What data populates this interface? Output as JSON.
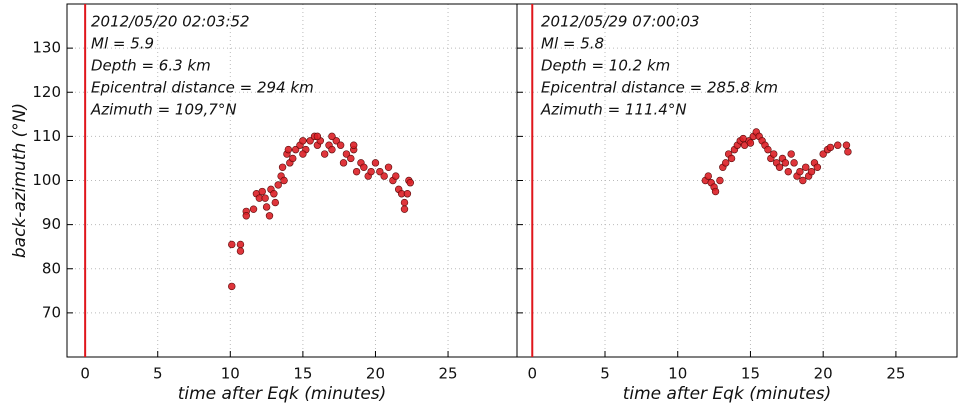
{
  "chart_data": [
    {
      "type": "scatter",
      "color": "#dc1f26",
      "vline": 0,
      "vline_color": "#e0151b",
      "grid": true,
      "annotations": [
        "2012/05/20 02:03:52",
        "Ml = 5.9",
        "Depth = 6.3 km",
        "Epicentral distance = 294 km",
        "Azimuth = 109,7°N"
      ],
      "x_label": "time after Eqk (minutes)",
      "y_label": "back-azimuth (°N)",
      "xlim": [
        -1.25,
        29.75
      ],
      "ylim": [
        60,
        140
      ],
      "xticks": [
        0,
        5,
        10,
        15,
        20,
        25
      ],
      "yticks": [
        70,
        80,
        90,
        100,
        110,
        120,
        130
      ],
      "x": [
        10.1,
        10.1,
        10.7,
        10.7,
        11.1,
        11.1,
        11.6,
        11.8,
        12.0,
        12.2,
        12.4,
        12.5,
        12.7,
        12.8,
        13.0,
        13.1,
        13.3,
        13.5,
        13.6,
        13.7,
        13.9,
        14.1,
        14.3,
        14.5,
        14.8,
        15.0,
        15.2,
        15.5,
        15.8,
        16.0,
        16.2,
        16.5,
        16.8,
        17.0,
        17.3,
        17.6,
        17.8,
        18.0,
        18.3,
        18.5,
        18.7,
        19.0,
        19.2,
        19.5,
        19.7,
        20.0,
        20.3,
        20.6,
        20.9,
        21.2,
        21.4,
        21.6,
        21.8,
        22.0,
        22.0,
        22.2,
        22.3,
        22.4,
        14.0,
        15.0,
        16.0,
        17.0,
        18.5
      ],
      "values": [
        76,
        85.5,
        85.5,
        84,
        93,
        92,
        93.5,
        97,
        96,
        97.5,
        96,
        94,
        92,
        98,
        97,
        95,
        99,
        101,
        103,
        100,
        106,
        104,
        105,
        107,
        108,
        109,
        107,
        109,
        110,
        108,
        109,
        106,
        108,
        107,
        109,
        108,
        104,
        106,
        105,
        107,
        102,
        104,
        103,
        101,
        102,
        104,
        102,
        101,
        103,
        100,
        101,
        98,
        97,
        95,
        93.5,
        97,
        100,
        99.5,
        107,
        106,
        110,
        110,
        108
      ]
    },
    {
      "type": "scatter",
      "color": "#dc1f26",
      "vline": 0,
      "vline_color": "#e0151b",
      "grid": true,
      "annotations": [
        "2012/05/29 07:00:03",
        "Ml = 5.8",
        "Depth = 10.2 km",
        "Epicentral distance = 285.8 km",
        "Azimuth = 111.4°N"
      ],
      "x_label": "time after Eqk (minutes)",
      "xlim": [
        -1.05,
        29.2
      ],
      "ylim": [
        60,
        140
      ],
      "xticks": [
        0,
        5,
        10,
        15,
        20,
        25
      ],
      "yticks": [
        70,
        80,
        90,
        100,
        110,
        120,
        130
      ],
      "x": [
        11.9,
        12.1,
        12.3,
        12.5,
        12.6,
        12.9,
        13.1,
        13.3,
        13.5,
        13.7,
        13.9,
        14.1,
        14.3,
        14.6,
        14.9,
        15.2,
        15.4,
        15.6,
        15.8,
        16.0,
        16.2,
        16.4,
        16.6,
        16.8,
        17.0,
        17.2,
        17.4,
        17.6,
        17.8,
        18.0,
        18.2,
        18.4,
        18.6,
        18.8,
        19.0,
        19.2,
        19.4,
        19.6,
        20.0,
        20.3,
        20.5,
        21.0,
        21.6,
        21.7,
        14.5,
        15.0
      ],
      "values": [
        100,
        101,
        99.5,
        98.5,
        97.5,
        100,
        103,
        104,
        106,
        105,
        107,
        108,
        109,
        108,
        109,
        110,
        111,
        110,
        109,
        108,
        107,
        105,
        106,
        104,
        103,
        105,
        104,
        102,
        106,
        104,
        101,
        102,
        100,
        103,
        101,
        102,
        104,
        103,
        106,
        107,
        107.5,
        108,
        108,
        106.5,
        109.5,
        108.5
      ]
    }
  ]
}
